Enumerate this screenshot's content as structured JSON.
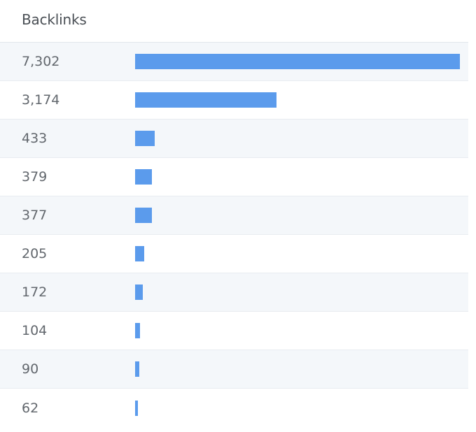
{
  "header": {
    "title": "Backlinks"
  },
  "accent_color": "#5b9bec",
  "rows": [
    {
      "label": "7,302",
      "value": 7302
    },
    {
      "label": "3,174",
      "value": 3174
    },
    {
      "label": "433",
      "value": 433
    },
    {
      "label": "379",
      "value": 379
    },
    {
      "label": "377",
      "value": 377
    },
    {
      "label": "205",
      "value": 205
    },
    {
      "label": "172",
      "value": 172
    },
    {
      "label": "104",
      "value": 104
    },
    {
      "label": "90",
      "value": 90
    },
    {
      "label": "62",
      "value": 62
    }
  ]
}
